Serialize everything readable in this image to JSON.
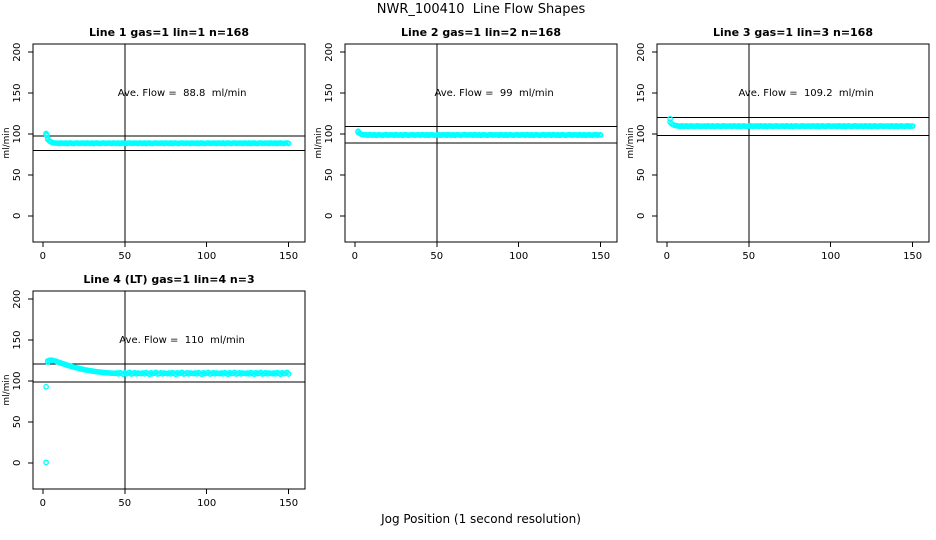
{
  "figure": {
    "title": "NWR_100410  Line Flow Shapes",
    "xlabel": "Jog Position (1 second resolution)",
    "ylabel": "ml/min",
    "background_color": "#ffffff",
    "point_color": "#00FFFF",
    "axis_color": "#000000"
  },
  "chart_data": [
    {
      "type": "scatter",
      "title": "Line 1 gas=1 lin=1 n=168",
      "annotation": "Ave. Flow =  88.8  ml/min",
      "ave_flow": 88.8,
      "ylabel": "ml/min",
      "xlim": [
        -6,
        160
      ],
      "ylim": [
        -32,
        210
      ],
      "xticks": [
        0,
        50,
        100,
        150
      ],
      "yticks": [
        0,
        50,
        100,
        150,
        200
      ],
      "vline_x": 50,
      "hlines_y": [
        97.7,
        79.9
      ],
      "annotation_xy": [
        85,
        150
      ],
      "marker": "open-circle",
      "color": "#00FFFF",
      "points_head": [
        [
          2,
          100.6
        ],
        [
          2,
          99.4
        ],
        [
          2.5,
          98.0
        ],
        [
          3,
          95.0
        ],
        [
          3,
          93.4
        ],
        [
          4,
          91.6
        ],
        [
          4.5,
          90.8
        ],
        [
          5,
          90.2
        ],
        [
          6,
          89.5
        ],
        [
          7,
          89.1
        ],
        [
          8,
          88.9
        ]
      ],
      "points_tail": {
        "x_start": 9,
        "x_end": 150,
        "step": 1,
        "base": 88.7,
        "amp": 1,
        "noise_cycle": [
          0.2,
          -0.3,
          0.4,
          0,
          -0.2,
          0.3,
          -0.4,
          0.1,
          0.3,
          -0.1,
          -0.3,
          0.2,
          0.4,
          -0.2,
          0,
          0.1
        ]
      }
    },
    {
      "type": "scatter",
      "title": "Line 2 gas=1 lin=2 n=168",
      "annotation": "Ave. Flow =  99  ml/min",
      "ave_flow": 99,
      "ylabel": "ml/min",
      "xlim": [
        -6,
        160
      ],
      "ylim": [
        -32,
        210
      ],
      "xticks": [
        0,
        50,
        100,
        150
      ],
      "yticks": [
        0,
        50,
        100,
        150,
        200
      ],
      "vline_x": 50,
      "hlines_y": [
        108.9,
        89.1
      ],
      "annotation_xy": [
        85,
        150
      ],
      "marker": "open-circle",
      "color": "#00FFFF",
      "points_head": [
        [
          2,
          103.4
        ],
        [
          2,
          102.0
        ],
        [
          3,
          100.8
        ],
        [
          3.5,
          100.1
        ],
        [
          4,
          99.7
        ],
        [
          5,
          99.2
        ],
        [
          6,
          98.9
        ]
      ],
      "points_tail": {
        "x_start": 7,
        "x_end": 150,
        "step": 1,
        "base": 98.8,
        "amp": 1,
        "noise_cycle": [
          0.2,
          -0.3,
          0.4,
          0,
          -0.2,
          0.3,
          -0.4,
          0.1,
          0.3,
          -0.1,
          -0.3,
          0.2,
          0.4,
          -0.2,
          0,
          0.1
        ]
      }
    },
    {
      "type": "scatter",
      "title": "Line 3 gas=1 lin=3 n=168",
      "annotation": "Ave. Flow =  109.2  ml/min",
      "ave_flow": 109.2,
      "ylabel": "ml/min",
      "xlim": [
        -6,
        160
      ],
      "ylim": [
        -32,
        210
      ],
      "xticks": [
        0,
        50,
        100,
        150
      ],
      "yticks": [
        0,
        50,
        100,
        150,
        200
      ],
      "vline_x": 50,
      "hlines_y": [
        120.1,
        98.3
      ],
      "annotation_xy": [
        85,
        150
      ],
      "marker": "open-circle",
      "color": "#00FFFF",
      "points_head": [
        [
          2,
          118.6
        ],
        [
          2,
          114.6
        ],
        [
          3,
          112.4
        ],
        [
          4,
          111.2
        ],
        [
          5,
          110.5
        ],
        [
          6,
          110.1
        ]
      ],
      "points_tail": {
        "x_start": 7,
        "x_end": 150,
        "step": 1,
        "base": 109.6,
        "amp": 1,
        "noise_cycle": [
          0.2,
          -0.3,
          0.4,
          0,
          -0.2,
          0.3,
          -0.4,
          0.1,
          0.3,
          -0.1,
          -0.3,
          0.2,
          0.4,
          -0.2,
          0,
          0.1
        ]
      }
    },
    {
      "type": "scatter",
      "title": "Line 4 (LT) gas=1 lin=4 n=3",
      "annotation": "Ave. Flow =  110  ml/min",
      "ave_flow": 110,
      "ylabel": "ml/min",
      "xlim": [
        -6,
        160
      ],
      "ylim": [
        -32,
        210
      ],
      "xticks": [
        0,
        50,
        100,
        150
      ],
      "yticks": [
        0,
        50,
        100,
        150,
        200
      ],
      "vline_x": 50,
      "hlines_y": [
        121,
        99
      ],
      "annotation_xy": [
        85,
        150
      ],
      "marker": "open-circle",
      "color": "#00FFFF",
      "points_head": [
        [
          2,
          0.5
        ],
        [
          2,
          93.0
        ],
        [
          3,
          123.0
        ],
        [
          3,
          124.5
        ],
        [
          4,
          125.3
        ],
        [
          5,
          125.6
        ],
        [
          6,
          125.2
        ],
        [
          7,
          124.7
        ],
        [
          8,
          124.1
        ],
        [
          9,
          123.4
        ],
        [
          10,
          122.7
        ],
        [
          11,
          122.0
        ],
        [
          12,
          121.3
        ],
        [
          13,
          120.6
        ],
        [
          14,
          120.0
        ],
        [
          15,
          119.3
        ],
        [
          16,
          118.7
        ],
        [
          17,
          118.1
        ],
        [
          18,
          117.5
        ],
        [
          19,
          117.0
        ],
        [
          20,
          116.4
        ],
        [
          21,
          115.9
        ],
        [
          22,
          115.4
        ],
        [
          23,
          114.9
        ],
        [
          24,
          114.5
        ],
        [
          25,
          114.0
        ],
        [
          26,
          113.6
        ],
        [
          27,
          113.2
        ],
        [
          28,
          112.9
        ],
        [
          29,
          112.5
        ],
        [
          30,
          112.2
        ],
        [
          31,
          111.9
        ],
        [
          32,
          111.6
        ],
        [
          33,
          111.3
        ],
        [
          34,
          111.1
        ],
        [
          35,
          110.8
        ],
        [
          36,
          110.6
        ],
        [
          37,
          110.4
        ],
        [
          38,
          110.2
        ],
        [
          39,
          110.0
        ],
        [
          40,
          109.9
        ],
        [
          41,
          109.7
        ],
        [
          42,
          109.6
        ],
        [
          43,
          109.5
        ],
        [
          44,
          109.4
        ]
      ],
      "points_tail": {
        "x_start": 45,
        "x_end": 150,
        "step": 1,
        "base": 109.2,
        "amp": 2.2,
        "noise_cycle": [
          0.3,
          -0.2,
          0.5,
          0.1,
          -0.4,
          0.4,
          -0.1,
          0.2,
          0.6,
          -0.3,
          0,
          0.4,
          -0.2,
          0.3,
          0.1,
          -0.1
        ]
      }
    }
  ]
}
